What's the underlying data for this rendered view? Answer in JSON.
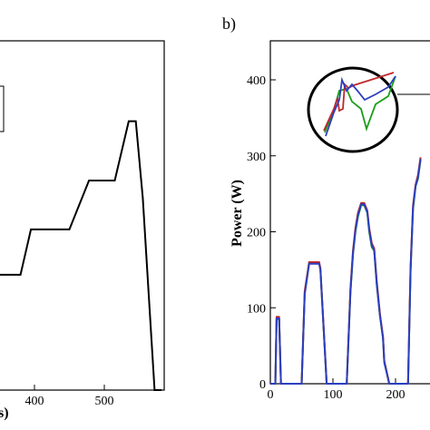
{
  "chart_data": [
    {
      "type": "line",
      "panel": "",
      "xlabel": "s)",
      "ylabel": "",
      "xlim": [
        0,
        580
      ],
      "ylim": [
        0,
        100
      ],
      "x_ticks": [
        400,
        500
      ],
      "grid": false,
      "series": [
        {
          "color": "#000000",
          "x": [
            0,
            380,
            395,
            450,
            478,
            515,
            535,
            545,
            555,
            572,
            582
          ],
          "y": [
            33,
            33,
            46,
            46,
            60,
            60,
            77,
            77,
            55,
            0,
            0
          ]
        }
      ]
    },
    {
      "type": "line",
      "panel": "b)",
      "xlabel": "",
      "ylabel": "Power (W)",
      "xlim": [
        0,
        240
      ],
      "ylim": [
        0,
        450
      ],
      "x_ticks": [
        0,
        100,
        200
      ],
      "y_ticks": [
        0,
        100,
        200,
        300,
        400
      ],
      "grid": false,
      "inset": "zoomed circular detail",
      "series": [
        {
          "color": "#1a9e1a",
          "x": [
            0,
            8,
            10,
            14,
            17,
            20,
            40,
            50,
            55,
            62,
            66,
            72,
            78,
            80,
            90,
            100,
            108,
            115,
            122,
            128,
            132,
            136,
            140,
            145,
            150,
            155,
            158,
            162,
            166,
            170,
            175,
            180,
            182,
            190,
            200,
            212,
            216,
            220,
            224,
            228,
            232,
            236,
            240
          ],
          "y": [
            0,
            0,
            85,
            85,
            0,
            0,
            0,
            0,
            120,
            160,
            160,
            160,
            160,
            150,
            0,
            0,
            0,
            0,
            0,
            120,
            170,
            200,
            220,
            235,
            235,
            225,
            200,
            180,
            175,
            130,
            90,
            60,
            30,
            0,
            0,
            0,
            0,
            0,
            150,
            230,
            260,
            270,
            295
          ]
        },
        {
          "color": "#c0282d",
          "x": [
            0,
            8,
            10,
            14,
            17,
            20,
            40,
            50,
            55,
            62,
            66,
            72,
            78,
            80,
            90,
            100,
            108,
            115,
            122,
            128,
            132,
            136,
            140,
            145,
            150,
            155,
            158,
            162,
            166,
            170,
            175,
            180,
            182,
            190,
            200,
            212,
            216,
            220,
            224,
            228,
            232,
            236,
            240
          ],
          "y": [
            0,
            0,
            88,
            88,
            0,
            0,
            0,
            0,
            122,
            160,
            160,
            160,
            160,
            152,
            0,
            0,
            0,
            0,
            0,
            125,
            175,
            205,
            225,
            238,
            238,
            228,
            205,
            185,
            178,
            135,
            92,
            62,
            30,
            0,
            0,
            0,
            0,
            0,
            155,
            235,
            262,
            275,
            298
          ]
        },
        {
          "color": "#2b3fbf",
          "x": [
            0,
            8,
            10,
            14,
            17,
            20,
            40,
            50,
            55,
            62,
            66,
            72,
            78,
            80,
            90,
            100,
            108,
            115,
            122,
            128,
            132,
            136,
            140,
            145,
            150,
            155,
            158,
            162,
            166,
            170,
            175,
            180,
            182,
            190,
            200,
            212,
            216,
            220,
            224,
            228,
            232,
            236,
            240
          ],
          "y": [
            0,
            0,
            86,
            86,
            0,
            0,
            0,
            0,
            118,
            158,
            158,
            158,
            158,
            150,
            0,
            0,
            0,
            0,
            0,
            122,
            172,
            202,
            222,
            236,
            236,
            226,
            202,
            182,
            176,
            132,
            90,
            60,
            28,
            0,
            0,
            0,
            0,
            0,
            150,
            232,
            260,
            272,
            296
          ]
        }
      ]
    }
  ]
}
